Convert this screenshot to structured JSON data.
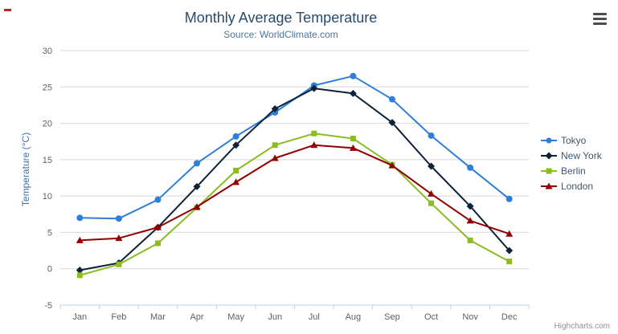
{
  "chart_data": {
    "type": "line",
    "title": "Monthly Average Temperature",
    "subtitle": "Source: WorldClimate.com",
    "categories": [
      "Jan",
      "Feb",
      "Mar",
      "Apr",
      "May",
      "Jun",
      "Jul",
      "Aug",
      "Sep",
      "Oct",
      "Nov",
      "Dec"
    ],
    "series": [
      {
        "name": "Tokyo",
        "color": "#2f7ed8",
        "marker": "circle",
        "values": [
          7.0,
          6.9,
          9.5,
          14.5,
          18.2,
          21.5,
          25.2,
          26.5,
          23.3,
          18.3,
          13.9,
          9.6
        ]
      },
      {
        "name": "New York",
        "color": "#0d233a",
        "marker": "diamond",
        "values": [
          -0.2,
          0.8,
          5.7,
          11.3,
          17.0,
          22.0,
          24.8,
          24.1,
          20.1,
          14.1,
          8.6,
          2.5
        ]
      },
      {
        "name": "Berlin",
        "color": "#8bbc21",
        "marker": "square",
        "values": [
          -0.9,
          0.6,
          3.5,
          8.4,
          13.5,
          17.0,
          18.6,
          17.9,
          14.3,
          9.0,
          3.9,
          1.0
        ]
      },
      {
        "name": "London",
        "color": "#910000",
        "marker": "triangle",
        "values": [
          3.9,
          4.2,
          5.7,
          8.5,
          11.9,
          15.2,
          17.0,
          16.6,
          14.2,
          10.3,
          6.6,
          4.8
        ]
      }
    ],
    "xlabel": "",
    "ylabel": "Temperature (°C)",
    "ylim": [
      -5,
      30
    ],
    "ytick_step": 5,
    "yticks": [
      -5,
      0,
      5,
      10,
      15,
      20,
      25,
      30
    ],
    "grid": true,
    "legend_position": "right"
  },
  "credits": {
    "label": "Highcharts.com"
  },
  "icons": {
    "export_menu": "hamburger-menu-icon"
  },
  "colors": {
    "grid": "#d8d8d8",
    "axis_line": "#c0d0e0",
    "axis_label": "#606060",
    "title": "#274b6d",
    "subtitle": "#4d759e",
    "axis_title": "#4572a7",
    "legend_label": "#3e576f",
    "credits": "#909090",
    "artifact_red": "#cc1f1f"
  }
}
